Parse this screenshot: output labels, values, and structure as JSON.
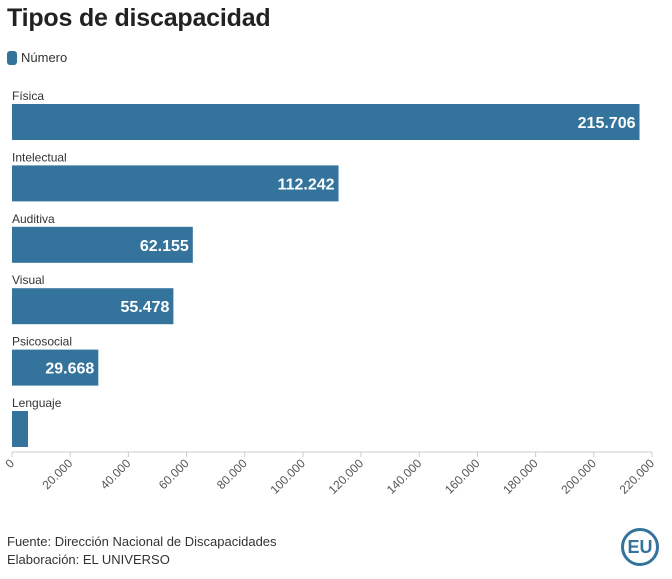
{
  "title": "Tipos de discapacidad",
  "legend_label": "Número",
  "colors": {
    "bar": "#33739c",
    "axis": "#cccccc",
    "grid": "#e6e6e6"
  },
  "chart_data": {
    "type": "bar",
    "orientation": "horizontal",
    "title": "Tipos de discapacidad",
    "categories": [
      "Física",
      "Intelectual",
      "Auditiva",
      "Visual",
      "Psicosocial",
      "Lenguaje"
    ],
    "series": [
      {
        "name": "Número",
        "values": [
          215706,
          112242,
          62155,
          55478,
          29668,
          5500
        ]
      }
    ],
    "value_labels": [
      "215.706",
      "112.242",
      "62.155",
      "55.478",
      "29.668",
      ""
    ],
    "xlim": [
      0,
      220000
    ],
    "xticks": [
      0,
      20000,
      40000,
      60000,
      80000,
      100000,
      120000,
      140000,
      160000,
      180000,
      200000,
      220000
    ],
    "xtick_labels": [
      "0",
      "20.000",
      "40.000",
      "60.000",
      "80.000",
      "100.000",
      "120.000",
      "140.000",
      "160.000",
      "180.000",
      "200.000",
      "220.000"
    ],
    "xlabel": "",
    "ylabel": "",
    "legend": "top-left",
    "grid": false
  },
  "footer": {
    "source": "Fuente: Dirección Nacional de Discapacidades",
    "credit": "Elaboración: EL UNIVERSO",
    "logo_text": "EU"
  }
}
